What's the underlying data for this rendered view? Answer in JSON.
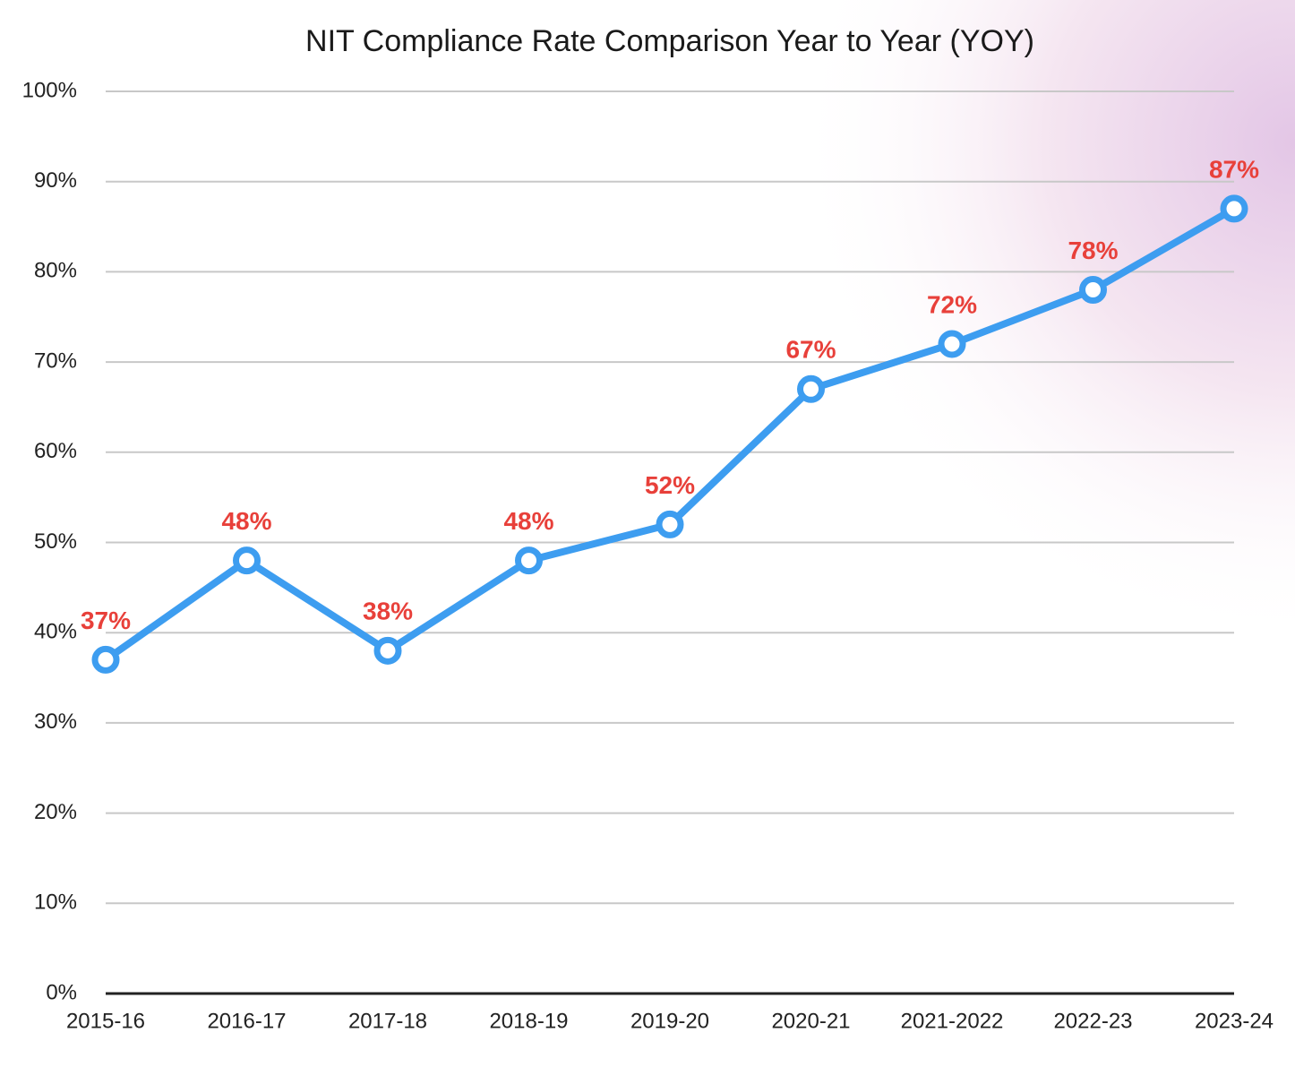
{
  "chart_data": {
    "type": "line",
    "title": "NIT Compliance Rate Comparison Year to Year (YOY)",
    "categories": [
      "2015-16",
      "2016-17",
      "2017-18",
      "2018-19",
      "2019-20",
      "2020-21",
      "2021-2022",
      "2022-23",
      "2023-24"
    ],
    "values": [
      37,
      48,
      38,
      48,
      52,
      67,
      72,
      78,
      87
    ],
    "value_labels": [
      "37%",
      "48%",
      "38%",
      "48%",
      "52%",
      "67%",
      "72%",
      "78%",
      "87%"
    ],
    "color": "#3d9df0",
    "label_color": "#e8403a",
    "ylim": [
      0,
      100
    ],
    "yticks": [
      {
        "value": 0,
        "label": "0%"
      },
      {
        "value": 10,
        "label": "10%"
      },
      {
        "value": 20,
        "label": "20%"
      },
      {
        "value": 30,
        "label": "30%"
      },
      {
        "value": 40,
        "label": "40%"
      },
      {
        "value": 50,
        "label": "50%"
      },
      {
        "value": 60,
        "label": "60%"
      },
      {
        "value": 70,
        "label": "70%"
      },
      {
        "value": 80,
        "label": "80%"
      },
      {
        "value": 90,
        "label": "90%"
      },
      {
        "value": 100,
        "label": "100%"
      }
    ],
    "grid": true
  }
}
